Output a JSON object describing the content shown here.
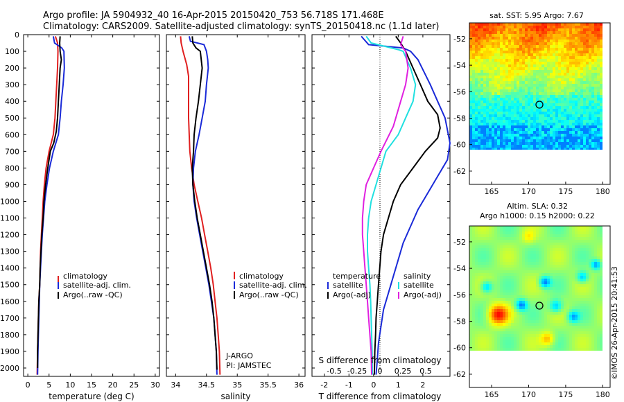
{
  "header": {
    "line1": "Argo profile: JA 5904932_40 16-Apr-2015 20150420_753 56.718S 171.468E",
    "line2": "Climatology: CARS2009. Satellite-adjusted climatology: synTS_20150418.nc (1.1d later)"
  },
  "colors": {
    "climatology": "#e02020",
    "satellite": "#1a2ad8",
    "argo": "#000000",
    "argo_adj_sal": "#e020e0",
    "satellite_sal": "#20e0e0"
  },
  "chart_data": [
    {
      "type": "line",
      "xlabel": "temperature (deg C)",
      "ylabel": "",
      "xlim": [
        -1,
        31
      ],
      "ylim": [
        2050,
        0
      ],
      "xticks": [
        "0",
        "5",
        "10",
        "15",
        "20",
        "25",
        "30"
      ],
      "yticks": [
        "0",
        "100",
        "200",
        "300",
        "400",
        "500",
        "600",
        "700",
        "800",
        "900",
        "1000",
        "1100",
        "1200",
        "1300",
        "1400",
        "1500",
        "1600",
        "1700",
        "1800",
        "1900",
        "2000"
      ],
      "legend": [
        "climatology",
        "satellite-adj. clim.",
        "Argo(..raw -QC)"
      ],
      "series": [
        {
          "name": "climatology",
          "color": "#e02020",
          "points": [
            [
              6.5,
              10
            ],
            [
              7.0,
              50
            ],
            [
              7.1,
              100
            ],
            [
              7.0,
              200
            ],
            [
              6.8,
              300
            ],
            [
              6.6,
              400
            ],
            [
              6.4,
              500
            ],
            [
              6.0,
              600
            ],
            [
              5.0,
              700
            ],
            [
              4.3,
              800
            ],
            [
              3.9,
              900
            ],
            [
              3.6,
              1000
            ],
            [
              3.4,
              1100
            ],
            [
              3.2,
              1200
            ],
            [
              3.0,
              1300
            ],
            [
              2.9,
              1400
            ],
            [
              2.8,
              1500
            ],
            [
              2.6,
              1600
            ],
            [
              2.5,
              1700
            ],
            [
              2.4,
              1800
            ],
            [
              2.3,
              1900
            ],
            [
              2.2,
              2040
            ]
          ]
        },
        {
          "name": "satellite-adj. clim.",
          "color": "#1a2ad8",
          "points": [
            [
              6.0,
              10
            ],
            [
              6.3,
              50
            ],
            [
              8.0,
              80
            ],
            [
              8.5,
              100
            ],
            [
              8.6,
              200
            ],
            [
              8.3,
              300
            ],
            [
              7.9,
              400
            ],
            [
              7.6,
              500
            ],
            [
              7.2,
              600
            ],
            [
              6.0,
              700
            ],
            [
              5.1,
              800
            ],
            [
              4.5,
              900
            ],
            [
              4.0,
              1000
            ],
            [
              3.7,
              1100
            ],
            [
              3.4,
              1200
            ],
            [
              3.2,
              1300
            ],
            [
              3.0,
              1400
            ],
            [
              2.8,
              1500
            ],
            [
              2.7,
              1600
            ],
            [
              2.6,
              1700
            ],
            [
              2.5,
              1800
            ],
            [
              2.4,
              1900
            ],
            [
              2.3,
              2040
            ]
          ]
        },
        {
          "name": "Argo(..raw -QC)",
          "color": "#000000",
          "points": [
            [
              7.6,
              10
            ],
            [
              7.5,
              50
            ],
            [
              7.6,
              100
            ],
            [
              7.9,
              150
            ],
            [
              7.6,
              200
            ],
            [
              7.4,
              300
            ],
            [
              7.2,
              400
            ],
            [
              7.0,
              500
            ],
            [
              6.7,
              580
            ],
            [
              6.1,
              650
            ],
            [
              5.3,
              700
            ],
            [
              4.7,
              800
            ],
            [
              4.2,
              900
            ],
            [
              3.8,
              1000
            ],
            [
              3.6,
              1100
            ],
            [
              3.3,
              1200
            ],
            [
              3.1,
              1300
            ],
            [
              2.9,
              1400
            ],
            [
              2.8,
              1500
            ],
            [
              2.6,
              1600
            ],
            [
              2.5,
              1700
            ],
            [
              2.4,
              1800
            ],
            [
              2.3,
              1900
            ],
            [
              2.3,
              2000
            ]
          ]
        }
      ]
    },
    {
      "type": "line",
      "xlabel": "salinity",
      "ylabel": "",
      "xlim": [
        33.85,
        36.1
      ],
      "ylim": [
        2050,
        0
      ],
      "xticks": [
        "34",
        "34.5",
        "35",
        "35.5",
        "36"
      ],
      "legend": [
        "climatology",
        "satellite-adj. clim.",
        "Argo(..raw -QC)"
      ],
      "annotations": [
        "J-ARGO",
        "PI: JAMSTEC"
      ],
      "series": [
        {
          "name": "climatology",
          "color": "#e02020",
          "points": [
            [
              34.08,
              10
            ],
            [
              34.09,
              50
            ],
            [
              34.12,
              100
            ],
            [
              34.18,
              180
            ],
            [
              34.21,
              250
            ],
            [
              34.21,
              400
            ],
            [
              34.21,
              500
            ],
            [
              34.22,
              600
            ],
            [
              34.23,
              700
            ],
            [
              34.26,
              800
            ],
            [
              34.3,
              900
            ],
            [
              34.36,
              1000
            ],
            [
              34.42,
              1100
            ],
            [
              34.47,
              1200
            ],
            [
              34.52,
              1300
            ],
            [
              34.57,
              1400
            ],
            [
              34.61,
              1500
            ],
            [
              34.64,
              1600
            ],
            [
              34.67,
              1700
            ],
            [
              34.69,
              1800
            ],
            [
              34.71,
              1900
            ],
            [
              34.72,
              2040
            ]
          ]
        },
        {
          "name": "satellite-adj. clim.",
          "color": "#1a2ad8",
          "points": [
            [
              34.22,
              10
            ],
            [
              34.24,
              40
            ],
            [
              34.46,
              60
            ],
            [
              34.5,
              100
            ],
            [
              34.52,
              150
            ],
            [
              34.53,
              200
            ],
            [
              34.5,
              300
            ],
            [
              34.48,
              400
            ],
            [
              34.43,
              500
            ],
            [
              34.38,
              600
            ],
            [
              34.32,
              700
            ],
            [
              34.29,
              800
            ],
            [
              34.28,
              900
            ],
            [
              34.3,
              1000
            ],
            [
              34.34,
              1100
            ],
            [
              34.39,
              1200
            ],
            [
              34.44,
              1300
            ],
            [
              34.49,
              1400
            ],
            [
              34.54,
              1500
            ],
            [
              34.58,
              1600
            ],
            [
              34.62,
              1700
            ],
            [
              34.64,
              1800
            ],
            [
              34.66,
              1900
            ],
            [
              34.67,
              2040
            ]
          ]
        },
        {
          "name": "Argo(..raw -QC)",
          "color": "#000000",
          "points": [
            [
              34.27,
              10
            ],
            [
              34.28,
              50
            ],
            [
              34.33,
              80
            ],
            [
              34.4,
              100
            ],
            [
              34.43,
              200
            ],
            [
              34.4,
              300
            ],
            [
              34.37,
              400
            ],
            [
              34.33,
              500
            ],
            [
              34.3,
              600
            ],
            [
              34.29,
              700
            ],
            [
              34.27,
              800
            ],
            [
              34.28,
              900
            ],
            [
              34.31,
              1000
            ],
            [
              34.35,
              1100
            ],
            [
              34.4,
              1200
            ],
            [
              34.45,
              1300
            ],
            [
              34.5,
              1400
            ],
            [
              34.55,
              1500
            ],
            [
              34.59,
              1600
            ],
            [
              34.62,
              1700
            ],
            [
              34.64,
              1800
            ],
            [
              34.66,
              1900
            ],
            [
              34.67,
              2010
            ]
          ]
        }
      ]
    },
    {
      "type": "line",
      "xlabel": "T difference from climatology",
      "xlabel2": "S difference from climatology",
      "xlim": [
        -2.5,
        3.1
      ],
      "ylim": [
        2050,
        0
      ],
      "xticks": [
        "-2",
        "-1",
        "0",
        "1",
        "2"
      ],
      "xticks_top": [
        "-0.5",
        "-0.25",
        "0",
        "0.25",
        "0.5"
      ],
      "legend_titles": [
        "temperature",
        "salinity"
      ],
      "legend": [
        "satellite",
        "Argo(-adj)",
        "satellite",
        "Argo(-adj)"
      ],
      "series": [
        {
          "name": "satellite",
          "variable": "temperature",
          "color": "#1a2ad8",
          "points": [
            [
              -0.5,
              10
            ],
            [
              -0.2,
              60
            ],
            [
              1.2,
              80
            ],
            [
              1.5,
              100
            ],
            [
              1.8,
              150
            ],
            [
              2.3,
              300
            ],
            [
              2.6,
              400
            ],
            [
              2.9,
              500
            ],
            [
              3.1,
              650
            ],
            [
              3.0,
              750
            ],
            [
              2.6,
              850
            ],
            [
              2.2,
              950
            ],
            [
              1.8,
              1050
            ],
            [
              1.5,
              1150
            ],
            [
              1.2,
              1250
            ],
            [
              1.0,
              1350
            ],
            [
              0.8,
              1450
            ],
            [
              0.6,
              1550
            ],
            [
              0.4,
              1650
            ],
            [
              0.3,
              1750
            ],
            [
              0.2,
              1850
            ],
            [
              0.15,
              1950
            ],
            [
              0.1,
              2040
            ]
          ]
        },
        {
          "name": "Argo(-adj)",
          "variable": "temperature",
          "color": "#000000",
          "points": [
            [
              0.9,
              10
            ],
            [
              1.1,
              50
            ],
            [
              1.3,
              100
            ],
            [
              1.6,
              200
            ],
            [
              1.9,
              300
            ],
            [
              2.2,
              400
            ],
            [
              2.6,
              480
            ],
            [
              2.7,
              560
            ],
            [
              2.6,
              620
            ],
            [
              2.1,
              700
            ],
            [
              1.6,
              800
            ],
            [
              1.1,
              900
            ],
            [
              0.8,
              1000
            ],
            [
              0.6,
              1100
            ],
            [
              0.4,
              1200
            ],
            [
              0.3,
              1300
            ],
            [
              0.25,
              1400
            ],
            [
              0.2,
              1500
            ],
            [
              0.15,
              1600
            ],
            [
              0.1,
              1700
            ],
            [
              0.08,
              1800
            ],
            [
              0.05,
              1900
            ],
            [
              0.03,
              2040
            ]
          ]
        },
        {
          "name": "satellite",
          "variable": "salinity",
          "color": "#20e0e0",
          "points": [
            [
              -0.3,
              10
            ],
            [
              -0.1,
              50
            ],
            [
              1.0,
              90
            ],
            [
              1.2,
              100
            ],
            [
              1.5,
              200
            ],
            [
              1.7,
              300
            ],
            [
              1.6,
              400
            ],
            [
              1.3,
              500
            ],
            [
              1.0,
              600
            ],
            [
              0.5,
              700
            ],
            [
              0.3,
              800
            ],
            [
              0.1,
              900
            ],
            [
              -0.1,
              1000
            ],
            [
              -0.2,
              1100
            ],
            [
              -0.25,
              1200
            ],
            [
              -0.25,
              1300
            ],
            [
              -0.2,
              1400
            ],
            [
              -0.15,
              1500
            ],
            [
              -0.12,
              1600
            ],
            [
              -0.1,
              1700
            ],
            [
              -0.08,
              1800
            ],
            [
              -0.06,
              1900
            ],
            [
              -0.05,
              2040
            ]
          ]
        },
        {
          "name": "Argo(-adj)",
          "variable": "salinity",
          "color": "#e020e0",
          "points": [
            [
              1.2,
              10
            ],
            [
              1.1,
              60
            ],
            [
              1.3,
              100
            ],
            [
              1.4,
              200
            ],
            [
              1.3,
              300
            ],
            [
              1.1,
              400
            ],
            [
              0.8,
              550
            ],
            [
              0.3,
              700
            ],
            [
              0.0,
              800
            ],
            [
              -0.3,
              900
            ],
            [
              -0.4,
              1000
            ],
            [
              -0.45,
              1100
            ],
            [
              -0.45,
              1200
            ],
            [
              -0.4,
              1300
            ],
            [
              -0.35,
              1400
            ],
            [
              -0.3,
              1500
            ],
            [
              -0.25,
              1600
            ],
            [
              -0.2,
              1700
            ],
            [
              -0.15,
              1800
            ],
            [
              -0.1,
              1900
            ],
            [
              -0.08,
              2040
            ]
          ]
        }
      ]
    },
    {
      "type": "heatmap",
      "title": "sat. SST: 5.95 Argo: 7.67",
      "xlim": [
        162,
        181
      ],
      "ylim": [
        -63,
        -50.8
      ],
      "xticks": [
        "165",
        "170",
        "175",
        "180"
      ],
      "yticks": [
        "-52",
        "-54",
        "-56",
        "-58",
        "-60",
        "-62"
      ],
      "marker": {
        "lon": 171.468,
        "lat": -56.718
      }
    },
    {
      "type": "heatmap",
      "title": "Altim. SLA: 0.32",
      "subtitle": "Argo h1000: 0.15 h2000: 0.22",
      "xlim": [
        162,
        181
      ],
      "ylim": [
        -63,
        -50.8
      ],
      "xticks": [
        "165",
        "170",
        "175",
        "180"
      ],
      "yticks": [
        "-52",
        "-54",
        "-56",
        "-58",
        "-60",
        "-62"
      ],
      "marker": {
        "lon": 171.468,
        "lat": -56.718
      }
    }
  ],
  "credit": "©IMOS 26-Apr-2015 20:41:53"
}
